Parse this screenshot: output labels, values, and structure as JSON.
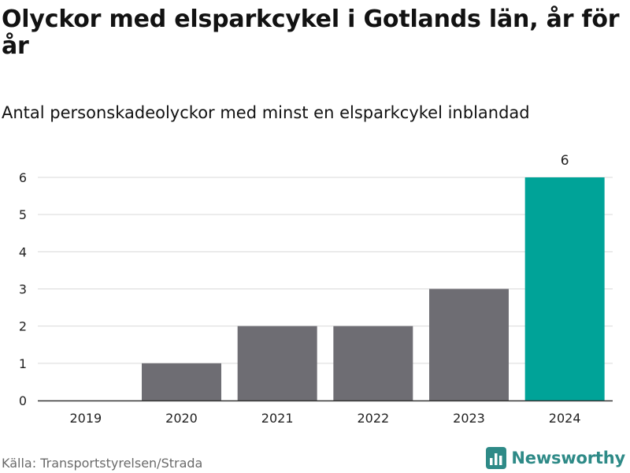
{
  "title": "Olyckor med elsparkcykel i Gotlands län, år för år",
  "subtitle": "Antal personskadeolyckor med minst en elsparkcykel inblandad",
  "source": "Källa: Transportstyrelsen/Strada",
  "brand": {
    "name": "Newsworthy",
    "color": "#2e8a87",
    "icon": "bar-chart-logo-icon"
  },
  "colors": {
    "bar": "#6e6d73",
    "highlight": "#00a398",
    "grid": "#d9d9d9",
    "axis": "#333333"
  },
  "chart_data": {
    "type": "bar",
    "categories": [
      "2019",
      "2020",
      "2021",
      "2022",
      "2023",
      "2024"
    ],
    "values": [
      0,
      1,
      2,
      2,
      3,
      6
    ],
    "highlight_index": 5,
    "data_labels": [
      {
        "index": 5,
        "text": "6"
      }
    ],
    "yticks": [
      0,
      1,
      2,
      3,
      4,
      5,
      6
    ],
    "ylim": [
      0,
      6
    ],
    "grid": true,
    "legend": "none"
  }
}
